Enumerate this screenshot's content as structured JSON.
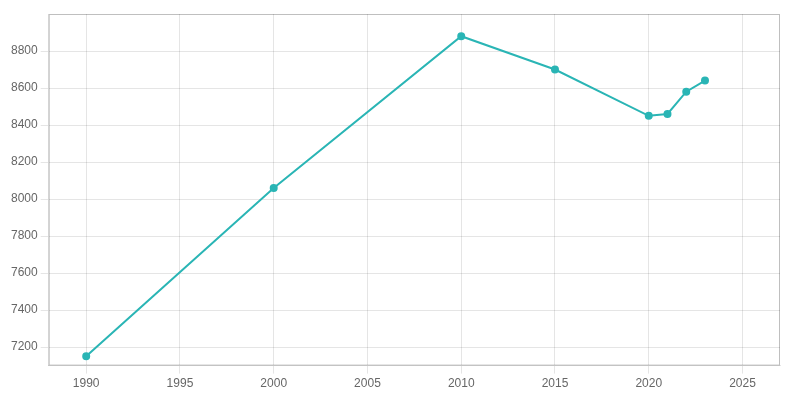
{
  "chart_data": {
    "type": "line",
    "x": [
      1990,
      2000,
      2010,
      2015,
      2020,
      2021,
      2022,
      2023
    ],
    "values": [
      7150,
      8060,
      8880,
      8700,
      8450,
      8460,
      8580,
      8640
    ],
    "color": "#2ab5b5",
    "marker": "circle",
    "xlim": [
      1988,
      2027
    ],
    "xticks": [
      1990,
      1995,
      2000,
      2005,
      2010,
      2015,
      2020,
      2025
    ],
    "ylim": [
      7100,
      9000
    ],
    "yticks": [
      7200,
      7400,
      7600,
      7800,
      8000,
      8200,
      8400,
      8600,
      8800
    ],
    "grid": true
  }
}
